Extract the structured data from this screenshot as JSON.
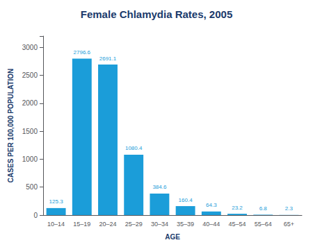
{
  "chart_data": {
    "type": "bar",
    "title": "Female Chlamydia Rates, 2005",
    "xlabel": "AGE",
    "ylabel": "CASES PER 100,000 POPULATION",
    "categories": [
      "10–14",
      "15–19",
      "20–24",
      "25–29",
      "30–34",
      "35–39",
      "40–44",
      "45–54",
      "55–64",
      "65+"
    ],
    "values": [
      125.3,
      2796.6,
      2691.1,
      1080.4,
      384.6,
      160.4,
      64.3,
      23.2,
      6.8,
      2.3
    ],
    "color": "#1b9dd9",
    "ylim": [
      0,
      3200
    ],
    "yticks": [
      0,
      500,
      1000,
      1500,
      2000,
      2500,
      3000
    ],
    "grid": false,
    "data_labels": true
  }
}
